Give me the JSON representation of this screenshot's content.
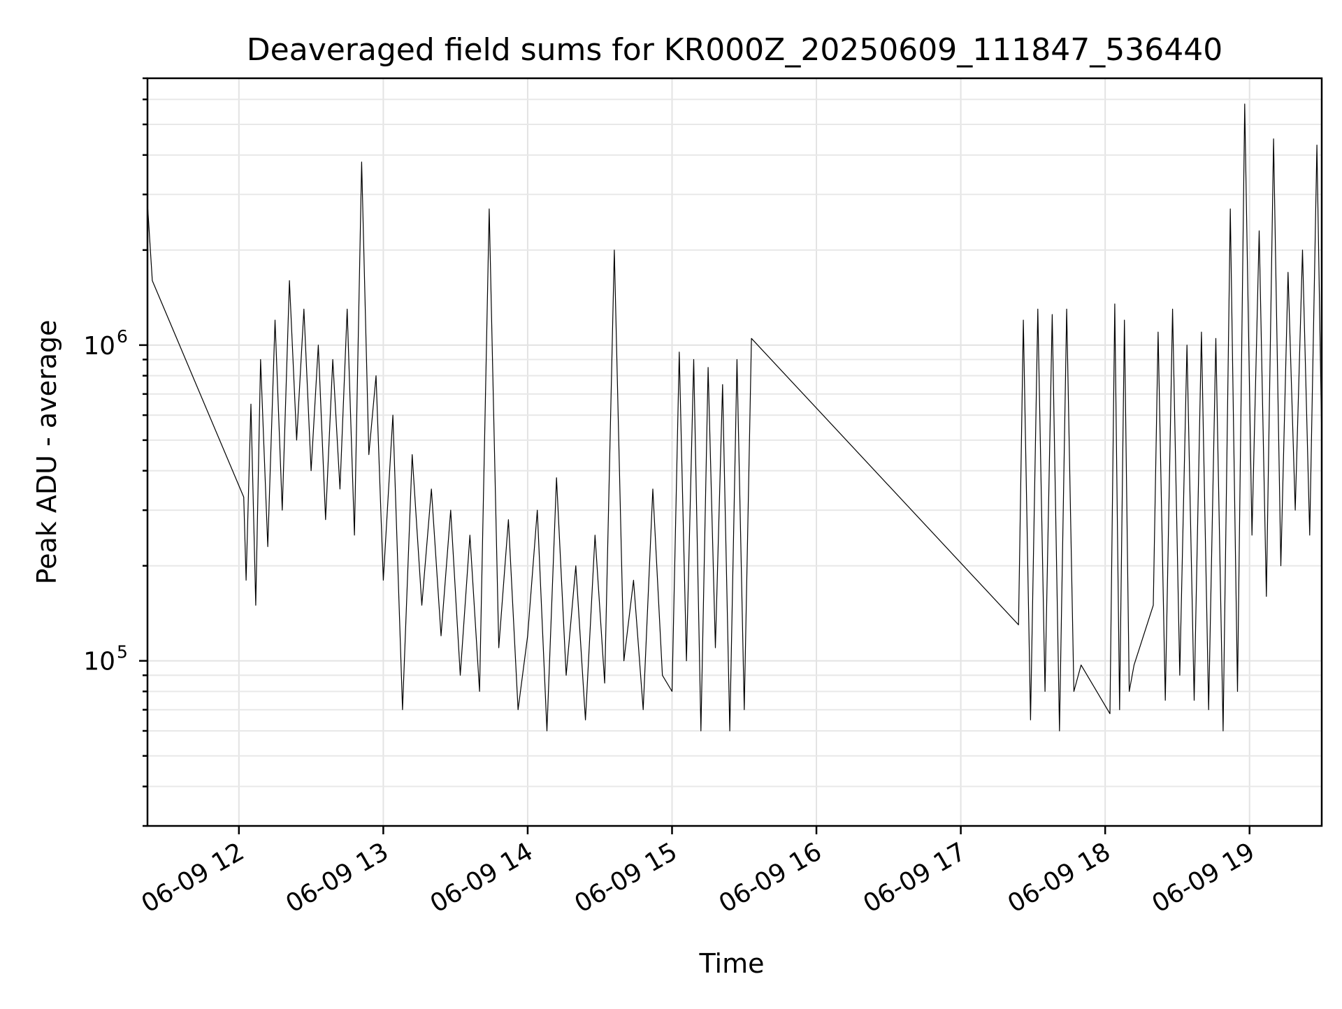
{
  "chart_data": {
    "type": "line",
    "title": "Deaveraged field sums for KR000Z_20250609_111847_536440",
    "xlabel": "Time",
    "ylabel": "Peak ADU - average",
    "yscale": "log",
    "grid": true,
    "line_color": "#000000",
    "xlim": [
      "2025-06-09T11:22:00",
      "2025-06-09T19:30:00"
    ],
    "ylim": [
      30000,
      7000000
    ],
    "x_ticks": [
      {
        "value": "2025-06-09T12:00:00",
        "label": "06-09 12"
      },
      {
        "value": "2025-06-09T13:00:00",
        "label": "06-09 13"
      },
      {
        "value": "2025-06-09T14:00:00",
        "label": "06-09 14"
      },
      {
        "value": "2025-06-09T15:00:00",
        "label": "06-09 15"
      },
      {
        "value": "2025-06-09T16:00:00",
        "label": "06-09 16"
      },
      {
        "value": "2025-06-09T17:00:00",
        "label": "06-09 17"
      },
      {
        "value": "2025-06-09T18:00:00",
        "label": "06-09 18"
      },
      {
        "value": "2025-06-09T19:00:00",
        "label": "06-09 19"
      }
    ],
    "y_ticks": [
      {
        "value": 100000,
        "base": "10",
        "exp": "5"
      },
      {
        "value": 1000000,
        "base": "10",
        "exp": "6"
      }
    ],
    "series": [
      {
        "x": [
          "2025-06-09T11:22:00",
          "2025-06-09T11:24:00",
          "2025-06-09T12:02:00",
          "2025-06-09T12:03:00",
          "2025-06-09T12:05:00",
          "2025-06-09T12:07:00",
          "2025-06-09T12:09:00",
          "2025-06-09T12:12:00",
          "2025-06-09T12:15:00",
          "2025-06-09T12:18:00",
          "2025-06-09T12:21:00",
          "2025-06-09T12:24:00",
          "2025-06-09T12:27:00",
          "2025-06-09T12:30:00",
          "2025-06-09T12:33:00",
          "2025-06-09T12:36:00",
          "2025-06-09T12:39:00",
          "2025-06-09T12:42:00",
          "2025-06-09T12:45:00",
          "2025-06-09T12:48:00",
          "2025-06-09T12:51:00",
          "2025-06-09T12:54:00",
          "2025-06-09T12:57:00",
          "2025-06-09T13:00:00",
          "2025-06-09T13:04:00",
          "2025-06-09T13:08:00",
          "2025-06-09T13:12:00",
          "2025-06-09T13:16:00",
          "2025-06-09T13:20:00",
          "2025-06-09T13:24:00",
          "2025-06-09T13:28:00",
          "2025-06-09T13:32:00",
          "2025-06-09T13:36:00",
          "2025-06-09T13:40:00",
          "2025-06-09T13:44:00",
          "2025-06-09T13:48:00",
          "2025-06-09T13:52:00",
          "2025-06-09T13:56:00",
          "2025-06-09T14:00:00",
          "2025-06-09T14:04:00",
          "2025-06-09T14:08:00",
          "2025-06-09T14:12:00",
          "2025-06-09T14:16:00",
          "2025-06-09T14:20:00",
          "2025-06-09T14:24:00",
          "2025-06-09T14:28:00",
          "2025-06-09T14:32:00",
          "2025-06-09T14:36:00",
          "2025-06-09T14:40:00",
          "2025-06-09T14:44:00",
          "2025-06-09T14:48:00",
          "2025-06-09T14:52:00",
          "2025-06-09T14:56:00",
          "2025-06-09T15:00:00",
          "2025-06-09T15:03:00",
          "2025-06-09T15:06:00",
          "2025-06-09T15:09:00",
          "2025-06-09T15:12:00",
          "2025-06-09T15:15:00",
          "2025-06-09T15:18:00",
          "2025-06-09T15:21:00",
          "2025-06-09T15:24:00",
          "2025-06-09T15:27:00",
          "2025-06-09T15:30:00",
          "2025-06-09T15:33:00",
          "2025-06-09T17:24:00",
          "2025-06-09T17:26:00",
          "2025-06-09T17:29:00",
          "2025-06-09T17:32:00",
          "2025-06-09T17:35:00",
          "2025-06-09T17:38:00",
          "2025-06-09T17:41:00",
          "2025-06-09T17:44:00",
          "2025-06-09T17:47:00",
          "2025-06-09T17:50:00",
          "2025-06-09T18:02:00",
          "2025-06-09T18:04:00",
          "2025-06-09T18:06:00",
          "2025-06-09T18:08:00",
          "2025-06-09T18:10:00",
          "2025-06-09T18:12:00",
          "2025-06-09T18:20:00",
          "2025-06-09T18:22:00",
          "2025-06-09T18:25:00",
          "2025-06-09T18:28:00",
          "2025-06-09T18:31:00",
          "2025-06-09T18:34:00",
          "2025-06-09T18:37:00",
          "2025-06-09T18:40:00",
          "2025-06-09T18:43:00",
          "2025-06-09T18:46:00",
          "2025-06-09T18:49:00",
          "2025-06-09T18:52:00",
          "2025-06-09T18:55:00",
          "2025-06-09T18:58:00",
          "2025-06-09T19:01:00",
          "2025-06-09T19:04:00",
          "2025-06-09T19:07:00",
          "2025-06-09T19:10:00",
          "2025-06-09T19:13:00",
          "2025-06-09T19:16:00",
          "2025-06-09T19:19:00",
          "2025-06-09T19:22:00",
          "2025-06-09T19:25:00",
          "2025-06-09T19:28:00",
          "2025-06-09T19:30:00"
        ],
        "y": [
          2800000,
          1600000,
          330000,
          180000,
          650000,
          150000,
          900000,
          230000,
          1200000,
          300000,
          1600000,
          500000,
          1300000,
          400000,
          1000000,
          280000,
          900000,
          350000,
          1300000,
          250000,
          3800000,
          450000,
          800000,
          180000,
          600000,
          70000,
          450000,
          150000,
          350000,
          120000,
          300000,
          90000,
          250000,
          80000,
          2700000,
          110000,
          280000,
          70000,
          120000,
          300000,
          60000,
          380000,
          90000,
          200000,
          65000,
          250000,
          85000,
          2000000,
          100000,
          180000,
          70000,
          350000,
          90000,
          80000,
          950000,
          100000,
          900000,
          60000,
          850000,
          110000,
          750000,
          60000,
          900000,
          70000,
          1050000,
          130000,
          1200000,
          65000,
          1300000,
          80000,
          1250000,
          60000,
          1300000,
          80000,
          97000,
          68000,
          1350000,
          70000,
          1200000,
          80000,
          97000,
          150000,
          1100000,
          75000,
          1300000,
          90000,
          1000000,
          75000,
          1100000,
          70000,
          1050000,
          60000,
          2700000,
          80000,
          5800000,
          250000,
          2300000,
          160000,
          4500000,
          200000,
          1700000,
          300000,
          2000000,
          250000,
          4300000,
          500000
        ]
      }
    ]
  }
}
